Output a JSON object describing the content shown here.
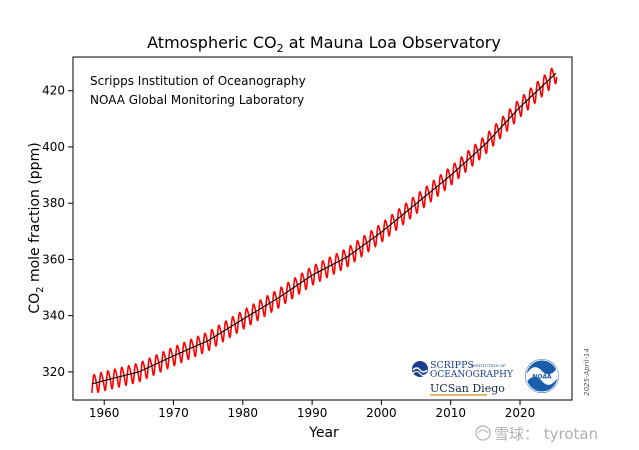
{
  "chart_data": {
    "type": "line",
    "title": "Atmospheric CO₂ at Mauna Loa Observatory",
    "title_parts": {
      "prefix": "Atmospheric CO",
      "subscript": "2",
      "suffix": " at Mauna Loa Observatory"
    },
    "xlabel": "Year",
    "ylabel": "CO₂ mole fraction (ppm)",
    "ylabel_parts": {
      "prefix": "CO",
      "subscript": "2",
      "suffix": " mole fraction (ppm)"
    },
    "xlim": [
      1955.5,
      2027.5
    ],
    "ylim": [
      310,
      432
    ],
    "x_ticks": [
      1960,
      1970,
      1980,
      1990,
      2000,
      2010,
      2020
    ],
    "y_ticks": [
      320,
      340,
      360,
      380,
      400,
      420
    ],
    "grid": false,
    "annotations": [
      "Scripps Institution of Oceanography",
      "NOAA Global Monitoring Laboratory"
    ],
    "date_stamp": "2025-April-14",
    "series": [
      {
        "color": "#ff0000",
        "kind": "monthly mean (seasonal cycle)",
        "x": [
          1958.2,
          1960,
          1965,
          1970,
          1975,
          1980,
          1985,
          1990,
          1995,
          2000,
          2005,
          2010,
          2015,
          2020,
          2025.3
        ],
        "y": [
          315.7,
          316.9,
          320.0,
          325.7,
          331.1,
          338.7,
          346.1,
          354.4,
          360.8,
          369.7,
          379.8,
          389.9,
          401.0,
          414.2,
          426.5
        ],
        "seasonal_amplitude_ppm": 3.2
      },
      {
        "color": "#000000",
        "kind": "seasonally adjusted trend",
        "x": [
          1958.2,
          1960,
          1965,
          1970,
          1975,
          1980,
          1985,
          1990,
          1995,
          2000,
          2005,
          2010,
          2015,
          2020,
          2025.3
        ],
        "y": [
          315.7,
          316.9,
          320.0,
          325.7,
          331.1,
          338.7,
          346.1,
          354.4,
          360.8,
          369.7,
          379.8,
          389.9,
          401.0,
          414.2,
          426.5
        ]
      }
    ]
  },
  "logos": {
    "scripps_line1": "SCRIPPS",
    "scripps_small": "INSTITUTION OF",
    "scripps_line2": "OCEANOGRAPHY",
    "ucsd_uc": "UC",
    "ucsd_rest": "San Diego",
    "noaa": "NOAA"
  },
  "watermark": "雪球： tyrotan"
}
